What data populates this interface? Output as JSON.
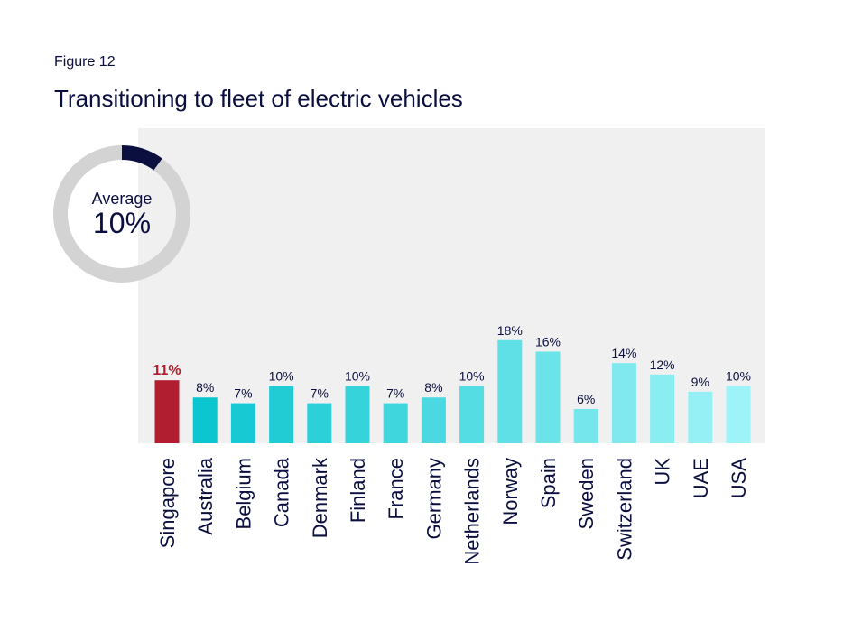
{
  "header": {
    "figure_label": "Figure 12",
    "title": "Transitioning to fleet of electric vehicles"
  },
  "chart_data": {
    "type": "bar",
    "title": "Transitioning to fleet of electric vehicles",
    "xlabel": "",
    "ylabel": "",
    "ylim": [
      0,
      55
    ],
    "grid": false,
    "categories": [
      "Singapore",
      "Australia",
      "Belgium",
      "Canada",
      "Denmark",
      "Finland",
      "France",
      "Germany",
      "Netherlands",
      "Norway",
      "Spain",
      "Sweden",
      "Switzerland",
      "UK",
      "UAE",
      "USA"
    ],
    "values": [
      11,
      8,
      7,
      10,
      7,
      10,
      7,
      8,
      10,
      18,
      16,
      6,
      14,
      12,
      9,
      10
    ],
    "value_labels": [
      "11%",
      "8%",
      "7%",
      "10%",
      "7%",
      "10%",
      "7%",
      "8%",
      "10%",
      "18%",
      "16%",
      "6%",
      "14%",
      "12%",
      "9%",
      "10%"
    ],
    "highlight_index": 0,
    "colors": {
      "highlight": "#b01e2f",
      "gradient_start": "#0cc6cf",
      "gradient_end": "#9ef3f8",
      "plot_background": "#f0f0f0",
      "text": "#0b0f3f"
    },
    "average": {
      "label": "Average",
      "value": 10,
      "value_label": "10%",
      "ring_color": "#0b0f3f",
      "track_color": "#d3d3d3"
    }
  }
}
